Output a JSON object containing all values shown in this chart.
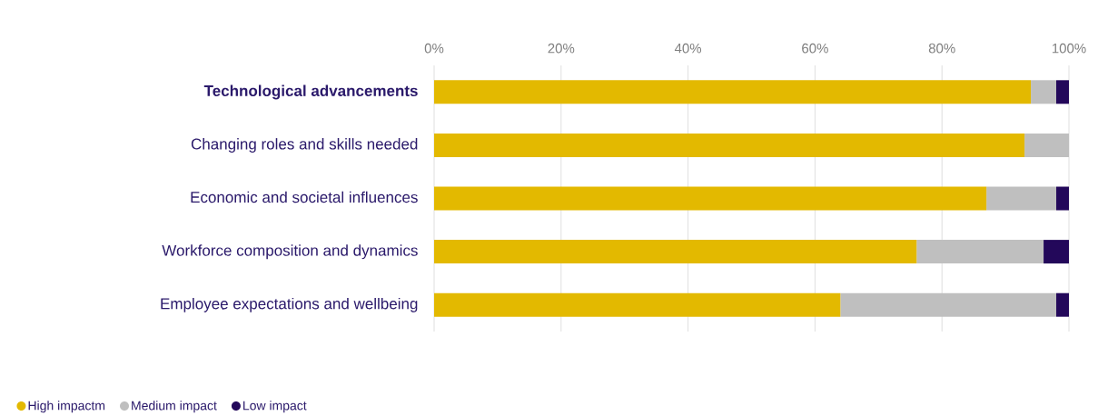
{
  "chart_data": {
    "type": "bar",
    "orientation": "horizontal",
    "stacked": true,
    "categories": [
      "Technological advancements",
      "Changing roles and skills needed",
      "Economic and societal influences",
      "Workforce composition and dynamics",
      "Employee expectations and wellbeing"
    ],
    "series": [
      {
        "name": "High impactm",
        "color": "#e3b900",
        "values": [
          94,
          93,
          87,
          76,
          64
        ]
      },
      {
        "name": "Medium impact",
        "color": "#bfbfbf",
        "values": [
          4,
          7,
          11,
          20,
          34
        ]
      },
      {
        "name": "Low impact",
        "color": "#23085a",
        "values": [
          2,
          0,
          2,
          4,
          2
        ]
      }
    ],
    "xlim": [
      0,
      100
    ],
    "xticks": [
      {
        "value": 0,
        "label": "0%"
      },
      {
        "value": 20,
        "label": "20%"
      },
      {
        "value": 40,
        "label": "40%"
      },
      {
        "value": 60,
        "label": "60%"
      },
      {
        "value": 80,
        "label": "80%"
      },
      {
        "value": 100,
        "label": "100%"
      }
    ],
    "grid": "x",
    "legend": "bottom left"
  }
}
